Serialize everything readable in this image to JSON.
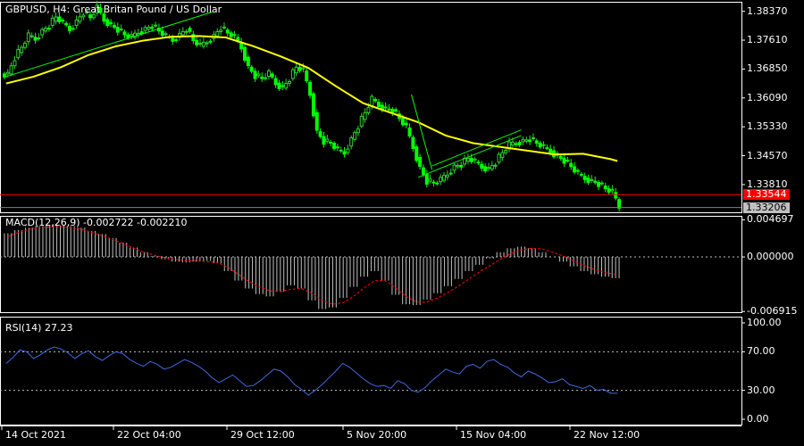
{
  "colors": {
    "background": "#000000",
    "grid": "#ffffff",
    "bull_candle": "#32cd32",
    "bear_candle": "#00ff00",
    "ma": "#ffff00",
    "channel": "#00ff00",
    "price_line": "#ff0000",
    "macd_hist": "#c0c0c0",
    "macd_signal": "#ff0000",
    "rsi": "#4169e1",
    "rsi_levels": "#c0c0c0"
  },
  "chart_data": [
    {
      "type": "candlestick",
      "panel": "price",
      "title": "GBPUSD, H4:  Great Britan Pound / US Dollar",
      "y_ticks": [
        "1.38370",
        "1.37610",
        "1.36850",
        "1.36090",
        "1.35330",
        "1.34570",
        "1.33810"
      ],
      "ylim": [
        1.3308,
        1.3862
      ],
      "bid": "1.33544",
      "bid_value": 1.33544,
      "ask": "1.33206",
      "ask_value": 1.33206,
      "x_labels": [
        "14 Oct 2021",
        "22 Oct 04:00",
        "29 Oct 12:00",
        "5 Nov 20:00",
        "15 Nov 04:00",
        "22 Nov 12:00"
      ],
      "series": [
        {
          "kind": "close_path",
          "values": [
            1.3672,
            1.3715,
            1.3742,
            1.3772,
            1.3765,
            1.3785,
            1.38,
            1.3822,
            1.3805,
            1.379,
            1.381,
            1.3835,
            1.382,
            1.3845,
            1.3815,
            1.38,
            1.379,
            1.3775,
            1.3768,
            1.3783,
            1.379,
            1.38,
            1.3785,
            1.377,
            1.3762,
            1.3775,
            1.3792,
            1.376,
            1.3745,
            1.3758,
            1.3772,
            1.3795,
            1.378,
            1.3768,
            1.3742,
            1.369,
            1.3668,
            1.366,
            1.3672,
            1.3648,
            1.3635,
            1.366,
            1.369,
            1.368,
            1.362,
            1.352,
            1.3495,
            1.349,
            1.347,
            1.3465,
            1.35,
            1.3535,
            1.357,
            1.3605,
            1.359,
            1.358,
            1.3578,
            1.3555,
            1.353,
            1.348,
            1.3425,
            1.339,
            1.3385,
            1.3392,
            1.341,
            1.3428,
            1.3435,
            1.345,
            1.344,
            1.3428,
            1.3422,
            1.344,
            1.3465,
            1.3485,
            1.3492,
            1.3495,
            1.3502,
            1.349,
            1.3478,
            1.347,
            1.3455,
            1.3445,
            1.3428,
            1.3408,
            1.3398,
            1.339,
            1.3384,
            1.337,
            1.336,
            1.3323
          ]
        },
        {
          "kind": "moving_average",
          "values": [
            [
              0,
              1.3647
            ],
            [
              4,
              1.3665
            ],
            [
              8,
              1.369
            ],
            [
              12,
              1.3722
            ],
            [
              16,
              1.3745
            ],
            [
              20,
              1.376
            ],
            [
              24,
              1.377
            ],
            [
              28,
              1.3772
            ],
            [
              32,
              1.3768
            ],
            [
              36,
              1.3745
            ],
            [
              40,
              1.3718
            ],
            [
              44,
              1.3688
            ],
            [
              48,
              1.364
            ],
            [
              52,
              1.3595
            ],
            [
              56,
              1.357
            ],
            [
              60,
              1.3545
            ],
            [
              64,
              1.351
            ],
            [
              68,
              1.349
            ],
            [
              72,
              1.348
            ],
            [
              76,
              1.347
            ],
            [
              80,
              1.346
            ],
            [
              84,
              1.3462
            ],
            [
              88,
              1.3448
            ],
            [
              89,
              1.3443
            ]
          ]
        },
        {
          "kind": "channel",
          "lines": [
            [
              [
                0,
                1.3665
              ],
              [
                30,
                1.3835
              ]
            ],
            [
              [
                60,
                1.34
              ],
              [
                75,
                1.351
              ]
            ],
            [
              [
                62,
                1.343
              ],
              [
                75,
                1.3525
              ]
            ],
            [
              [
                59,
                1.3618
              ],
              [
                62,
                1.342
              ]
            ]
          ]
        }
      ]
    },
    {
      "type": "bar",
      "panel": "macd",
      "title": "MACD(12,26,9) -0.002722 -0.002210",
      "y_ticks": [
        "0.004697",
        "0.000000",
        "-0.006915"
      ],
      "ylim": [
        -0.007,
        0.0052
      ],
      "series": [
        {
          "name": "histogram",
          "values": [
            0.003,
            0.0034,
            0.0037,
            0.0039,
            0.004,
            0.004,
            0.0039,
            0.0037,
            0.0033,
            0.0029,
            0.0024,
            0.0018,
            0.0012,
            0.0006,
            0.0001,
            -0.0003,
            -0.0006,
            -0.0007,
            -0.0006,
            -0.0005,
            -0.0008,
            -0.0018,
            -0.003,
            -0.004,
            -0.0047,
            -0.005,
            -0.0044,
            -0.0036,
            -0.004,
            -0.0055,
            -0.0066,
            -0.0064,
            -0.0052,
            -0.0038,
            -0.0025,
            -0.0018,
            -0.003,
            -0.0048,
            -0.006,
            -0.0061,
            -0.0054,
            -0.0046,
            -0.0037,
            -0.0028,
            -0.0018,
            -0.001,
            -0.0002,
            0.0006,
            0.0011,
            0.0013,
            0.0011,
            0.0006,
            0.0,
            -0.0006,
            -0.0012,
            -0.0018,
            -0.0022,
            -0.0025,
            -0.0027
          ]
        },
        {
          "name": "signal",
          "values": [
            0.0026,
            0.0031,
            0.0035,
            0.0037,
            0.0038,
            0.0038,
            0.0037,
            0.0035,
            0.0031,
            0.0027,
            0.0022,
            0.0017,
            0.0011,
            0.0006,
            0.0002,
            -0.0001,
            -0.0003,
            -0.0005,
            -0.0005,
            -0.0006,
            -0.0007,
            -0.0013,
            -0.0022,
            -0.0031,
            -0.0038,
            -0.0043,
            -0.0044,
            -0.0041,
            -0.004,
            -0.0046,
            -0.0055,
            -0.006,
            -0.0058,
            -0.005,
            -0.0039,
            -0.003,
            -0.003,
            -0.0039,
            -0.005,
            -0.0057,
            -0.0057,
            -0.0052,
            -0.0045,
            -0.0037,
            -0.0028,
            -0.0019,
            -0.0011,
            -0.0003,
            0.0004,
            0.0009,
            0.0011,
            0.001,
            0.0006,
            0.0001,
            -0.0005,
            -0.0011,
            -0.0016,
            -0.002,
            -0.0022
          ]
        }
      ]
    },
    {
      "type": "line",
      "panel": "rsi",
      "title": "RSI(14) 27.23",
      "y_ticks": [
        "100.00",
        "70.00",
        "30.00",
        "0.00"
      ],
      "ylim": [
        0,
        100
      ],
      "levels": [
        70,
        30
      ],
      "series": [
        {
          "name": "RSI",
          "values": [
            58,
            64,
            72,
            70,
            63,
            67,
            72,
            75,
            73,
            69,
            63,
            68,
            71,
            65,
            61,
            66,
            70,
            68,
            62,
            58,
            55,
            60,
            57,
            52,
            54,
            58,
            62,
            59,
            55,
            50,
            43,
            38,
            42,
            46,
            40,
            34,
            35,
            40,
            46,
            52,
            50,
            44,
            36,
            31,
            25,
            30,
            36,
            43,
            50,
            58,
            54,
            48,
            42,
            37,
            34,
            35,
            32,
            40,
            37,
            30,
            28,
            33,
            40,
            46,
            52,
            49,
            47,
            55,
            57,
            53,
            60,
            62,
            57,
            54,
            48,
            44,
            50,
            47,
            43,
            38,
            39,
            42,
            36,
            34,
            32,
            35,
            30,
            31,
            27,
            27
          ]
        }
      ]
    }
  ]
}
